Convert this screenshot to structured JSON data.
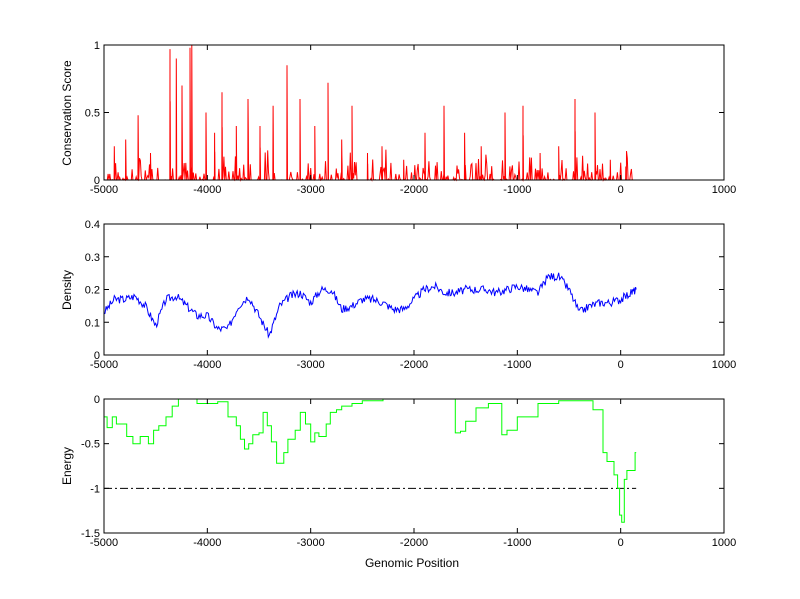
{
  "chart_data": [
    {
      "type": "line",
      "title": "",
      "xlabel": "",
      "ylabel": "Conservation Score",
      "xlim": [
        -5000,
        1000
      ],
      "ylim": [
        0,
        1
      ],
      "xticks": [
        "-5000",
        "-4000",
        "-3000",
        "-2000",
        "-1000",
        "0",
        "1000"
      ],
      "yticks": [
        "0",
        "0.5",
        "1"
      ],
      "color": "#ff0000",
      "x_extent": [
        -5000,
        150
      ],
      "peaks": [
        [
          -4900,
          0.25
        ],
        [
          -4790,
          0.3
        ],
        [
          -4670,
          0.48
        ],
        [
          -4550,
          0.2
        ],
        [
          -4361,
          0.97
        ],
        [
          -4300,
          0.9
        ],
        [
          -4245,
          0.7
        ],
        [
          -4168,
          0.98
        ],
        [
          -4150,
          1.0
        ],
        [
          -4013,
          0.5
        ],
        [
          -3930,
          0.35
        ],
        [
          -3858,
          0.65
        ],
        [
          -3720,
          0.4
        ],
        [
          -3606,
          0.6
        ],
        [
          -3490,
          0.4
        ],
        [
          -3364,
          0.55
        ],
        [
          -3229,
          0.85
        ],
        [
          -3103,
          0.6
        ],
        [
          -2960,
          0.4
        ],
        [
          -2832,
          0.72
        ],
        [
          -2700,
          0.3
        ],
        [
          -2600,
          0.55
        ],
        [
          -2450,
          0.2
        ],
        [
          -2310,
          0.25
        ],
        [
          -2100,
          0.15
        ],
        [
          -1894,
          0.35
        ],
        [
          -1710,
          0.55
        ],
        [
          -1510,
          0.35
        ],
        [
          -1350,
          0.25
        ],
        [
          -1119,
          0.5
        ],
        [
          -945,
          0.55
        ],
        [
          -780,
          0.2
        ],
        [
          -600,
          0.25
        ],
        [
          -442,
          0.6
        ],
        [
          -248,
          0.5
        ],
        [
          -100,
          0.15
        ],
        [
          50,
          0.1
        ]
      ],
      "noise_level": 0.12
    },
    {
      "type": "line",
      "ylabel": "Density",
      "xlim": [
        -5000,
        1000
      ],
      "ylim": [
        0,
        0.4
      ],
      "xticks": [
        "-5000",
        "-4000",
        "-3000",
        "-2000",
        "-1000",
        "0",
        "1000"
      ],
      "yticks": [
        "0",
        "0.1",
        "0.2",
        "0.3",
        "0.4"
      ],
      "color": "#0000ff",
      "x": [
        -5000,
        -4900,
        -4800,
        -4700,
        -4600,
        -4500,
        -4400,
        -4300,
        -4200,
        -4100,
        -4000,
        -3900,
        -3800,
        -3700,
        -3600,
        -3500,
        -3400,
        -3300,
        -3200,
        -3100,
        -3000,
        -2900,
        -2800,
        -2700,
        -2600,
        -2500,
        -2400,
        -2300,
        -2200,
        -2100,
        -2000,
        -1900,
        -1800,
        -1700,
        -1600,
        -1500,
        -1400,
        -1300,
        -1200,
        -1100,
        -1000,
        -900,
        -800,
        -700,
        -600,
        -500,
        -400,
        -300,
        -200,
        -100,
        0,
        100,
        150
      ],
      "y": [
        0.13,
        0.17,
        0.17,
        0.18,
        0.15,
        0.09,
        0.17,
        0.18,
        0.15,
        0.12,
        0.12,
        0.08,
        0.08,
        0.15,
        0.18,
        0.12,
        0.06,
        0.15,
        0.18,
        0.19,
        0.16,
        0.2,
        0.2,
        0.14,
        0.15,
        0.17,
        0.17,
        0.16,
        0.14,
        0.14,
        0.17,
        0.2,
        0.21,
        0.19,
        0.19,
        0.2,
        0.2,
        0.2,
        0.19,
        0.2,
        0.21,
        0.2,
        0.19,
        0.24,
        0.24,
        0.2,
        0.13,
        0.15,
        0.16,
        0.16,
        0.17,
        0.19,
        0.2
      ]
    },
    {
      "type": "line",
      "ylabel": "Energy",
      "xlabel": "Genomic Position",
      "xlim": [
        -5000,
        1000
      ],
      "ylim": [
        -1.5,
        0
      ],
      "xticks": [
        "-5000",
        "-4000",
        "-3000",
        "-2000",
        "-1000",
        "0",
        "1000"
      ],
      "yticks": [
        "-1.5",
        "-1",
        "-0.5",
        "0"
      ],
      "color": "#00ff00",
      "step_x": [
        -5000,
        -4970,
        -4920,
        -4880,
        -4780,
        -4720,
        -4650,
        -4570,
        -4520,
        -4470,
        -4400,
        -4340,
        -4280,
        -4100,
        -3900,
        -3800,
        -3720,
        -3680,
        -3640,
        -3600,
        -3560,
        -3500,
        -3460,
        -3420,
        -3380,
        -3330,
        -3260,
        -3220,
        -3150,
        -3100,
        -3050,
        -3000,
        -2960,
        -2920,
        -2850,
        -2810,
        -2750,
        -2700,
        -2600,
        -2500,
        -2300,
        -1600,
        -1550,
        -1500,
        -1400,
        -1280,
        -1150,
        -1100,
        -1000,
        -900,
        -800,
        -600,
        -268,
        -171,
        -132,
        -65,
        -30,
        -10,
        10,
        35,
        60,
        140,
        150
      ],
      "step_y": [
        -0.2,
        -0.32,
        -0.2,
        -0.28,
        -0.42,
        -0.5,
        -0.42,
        -0.5,
        -0.35,
        -0.3,
        -0.2,
        -0.08,
        0,
        -0.05,
        -0.03,
        -0.2,
        -0.3,
        -0.45,
        -0.56,
        -0.5,
        -0.4,
        -0.38,
        -0.15,
        -0.3,
        -0.48,
        -0.72,
        -0.6,
        -0.45,
        -0.35,
        -0.15,
        -0.28,
        -0.48,
        -0.38,
        -0.42,
        -0.28,
        -0.15,
        -0.12,
        -0.08,
        -0.05,
        -0.02,
        0,
        -0.38,
        -0.36,
        -0.25,
        -0.1,
        -0.05,
        -0.4,
        -0.35,
        -0.2,
        -0.2,
        -0.05,
        -0.02,
        -0.12,
        -0.6,
        -0.7,
        -0.85,
        -1.0,
        -1.3,
        -1.38,
        -0.9,
        -0.8,
        -0.6,
        -0.6
      ],
      "threshold": -1,
      "threshold_extent": [
        -5000,
        150
      ]
    }
  ]
}
